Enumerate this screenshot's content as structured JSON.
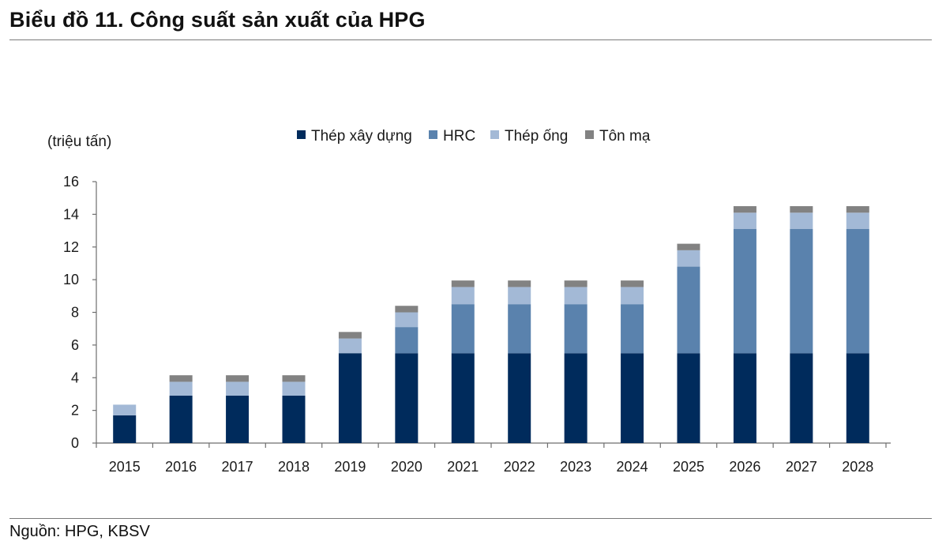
{
  "header": {
    "title": "Biểu đồ 11. Công suất sản xuất của HPG"
  },
  "footer": {
    "source": "Nguồn: HPG, KBSV"
  },
  "chart_data": {
    "type": "bar",
    "stacked": true,
    "unit_label": "(triệu tấn)",
    "xlabel": "",
    "ylabel": "",
    "ylim": [
      0,
      16
    ],
    "yticks": [
      0,
      2,
      4,
      6,
      8,
      10,
      12,
      14,
      16
    ],
    "grid": false,
    "legend_position": "top",
    "categories": [
      "2015",
      "2016",
      "2017",
      "2018",
      "2019",
      "2020",
      "2021",
      "2022",
      "2023",
      "2024",
      "2025",
      "2026",
      "2027",
      "2028"
    ],
    "series": [
      {
        "name": "Thép xây dựng",
        "color": "#002b5c",
        "values": [
          1.7,
          2.9,
          2.9,
          2.9,
          5.5,
          5.5,
          5.5,
          5.5,
          5.5,
          5.5,
          5.5,
          5.5,
          5.5,
          5.5
        ]
      },
      {
        "name": "HRC",
        "color": "#5a82ad",
        "values": [
          0,
          0,
          0,
          0,
          0,
          1.6,
          3.0,
          3.0,
          3.0,
          3.0,
          5.3,
          7.6,
          7.6,
          7.6
        ]
      },
      {
        "name": "Thép ống",
        "color": "#a3b9d6",
        "values": [
          0.65,
          0.85,
          0.85,
          0.85,
          0.9,
          0.9,
          1.05,
          1.05,
          1.05,
          1.05,
          1.0,
          1.0,
          1.0,
          1.0
        ]
      },
      {
        "name": "Tôn mạ",
        "color": "#828282",
        "values": [
          0,
          0.4,
          0.4,
          0.4,
          0.4,
          0.4,
          0.4,
          0.4,
          0.4,
          0.4,
          0.4,
          0.4,
          0.4,
          0.4
        ]
      }
    ]
  }
}
